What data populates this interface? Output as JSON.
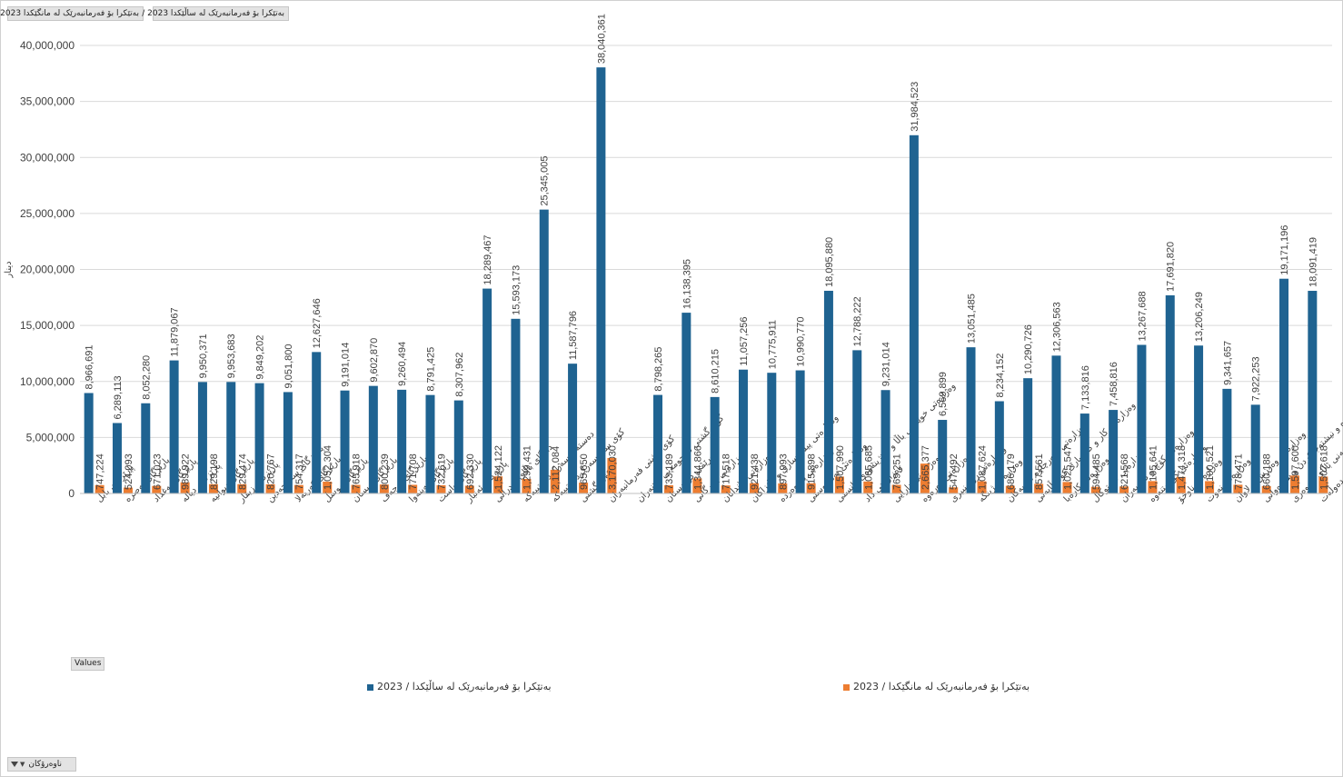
{
  "filter_buttons": [
    "بەتێکرا بۆ فەرمانبەرێک لە مانگێکدا 2023 /",
    "بەتێکرا بۆ فەرمانبەرێک لە ساڵێکدا 2023 /"
  ],
  "values_button": "Values",
  "axis_filter_button": "ناوەرۆکان",
  "colors": {
    "series1": "#1f6391",
    "series2": "#ed7d31",
    "grid": "#d9d9d9",
    "text": "#404040"
  },
  "icons": [
    "filter-icon",
    "chevron-down-icon"
  ],
  "chart_data": {
    "type": "bar",
    "ylabel": "دینار",
    "ylim": [
      0,
      40000000
    ],
    "yticks": [
      0,
      5000000,
      10000000,
      15000000,
      20000000,
      25000000,
      30000000,
      35000000,
      40000000
    ],
    "ytick_labels": [
      "0",
      "5,000,000",
      "10,000,000",
      "15,000,000",
      "20,000,000",
      "25,000,000",
      "30,000,000",
      "35,000,000",
      "40,000,000"
    ],
    "grid": true,
    "legend_position": "bottom",
    "categories": [
      "پارێزگای بابل",
      "پارێزگای بەصرە",
      "پارێزگای بەغداد",
      "پارێزگای دیالە",
      "پارێزگای دیوانیە",
      "پارێزگای زیقار",
      "پارێزگای سەلاحەدین",
      "پارێزگای کەربەلا",
      "پارێزگای موسڵ",
      "پارێزگای میسان",
      "پارێزگای نەجەف",
      "پارێزگای نەینەوا",
      "پارێزگای واست",
      "پارێزگای ئەنبار",
      "دادگای باڵای فیدراڵی",
      "دەستەی سەرکردایەتییەکە",
      "کۆی سی سەرکردایەتییەکە",
      "کۆی گشتی",
      "کۆی گشتی فەرمانبەران",
      "کۆی گشتی ئەنجومەنی نوێنەران",
      "هەرێمی کوردستان",
      "وەزارەتی بازرگانی",
      "وەزارەتی پلاندانان",
      "وەزارەتی پیشەسازی و کانزاکان",
      "وەزارەتی پەروەردە",
      "وەزارەتی تەندروستی",
      "وەزارەتی خوێندنی باڵا و توێژینەوەی زانستی",
      "وەزارەتی داد",
      "وەزارەتی دارایی",
      "وەزارەتی دەرەوە",
      "وەزارەتی رۆشنبیری",
      "وەزارەتی ژینگە",
      "وەزارەتی سەرچاوە ئاوییەکان",
      "وەزارەتی کار و کاروباری کۆمەڵایەتی",
      "وەزارەتی کارەبا",
      "وەزارەتی کشتوکاڵ",
      "وەزارەتی کۆچ و کۆچبەران",
      "وەزارەتی گواستنەوە",
      "وەزارەتی ناوخۆ",
      "وەزارەتی نەوت",
      "وەزارەتی وەرزش و لاوان",
      "وەزارەتی ئاوەدانکردنەوە و نیشتەجێکردن و شارەوانی",
      "ئەنجومەنی باڵای دادوەری",
      "ئەنجومەنی دەوڵەت"
    ],
    "series": [
      {
        "name": "بەتێکرا بۆ فەرمانبەرێک لە ساڵێکدا / 2023",
        "color": "#1f6391",
        "values": [
          8966691,
          6289113,
          8052280,
          11879067,
          9950371,
          9953683,
          9849202,
          9051800,
          12627646,
          9191014,
          9602870,
          9260494,
          8791425,
          8307962,
          18289467,
          15593173,
          25345005,
          11587796,
          38040361,
          null,
          8798265,
          16138395,
          8610215,
          11057256,
          10775911,
          10990770,
          18095880,
          12788222,
          9231014,
          31984523,
          6569899,
          13051485,
          8234152,
          10290726,
          12306563,
          7133816,
          7458816,
          13267688,
          17691820,
          13206249,
          9341657,
          7922253,
          19171196,
          18091419
        ],
        "labels": [
          "8,966,691",
          "6,289,113",
          "8,052,280",
          "11,879,067",
          "9,950,371",
          "9,953,683",
          "9,849,202",
          "9,051,800",
          "12,627,646",
          "9,191,014",
          "9,602,870",
          "9,260,494",
          "8,791,425",
          "8,307,962",
          "18,289,467",
          "15,593,173",
          "25,345,005",
          "11,587,796",
          "38,040,361",
          "",
          "8,798,265",
          "16,138,395",
          "8,610,215",
          "11,057,256",
          "10,775,911",
          "10,990,770",
          "18,095,880",
          "12,788,222",
          "9,231,014",
          "31,984,523",
          "6,569,899",
          "13,051,485",
          "8,234,152",
          "10,290,726",
          "12,306,563",
          "7,133,816",
          "7,458,816",
          "13,267,688",
          "17,691,820",
          "13,206,249",
          "9,341,657",
          "7,922,253",
          "19,171,196",
          "18,091,419"
        ]
      },
      {
        "name": "بەتێکرا بۆ فەرمانبەرێک لە مانگێکدا / 2023",
        "color": "#ed7d31",
        "values": [
          747224,
          524093,
          671023,
          989922,
          829198,
          829474,
          820767,
          754317,
          1052304,
          765918,
          800239,
          771708,
          732619,
          692330,
          1524122,
          1299431,
          2112084,
          965650,
          3170030,
          null,
          733189,
          1344866,
          717518,
          921438,
          897993,
          915898,
          1507990,
          1065685,
          769251,
          2665377,
          547492,
          1087624,
          686179,
          857561,
          1025547,
          594485,
          621568,
          1105641,
          1474318,
          1100521,
          778471,
          660188,
          1597600,
          1507618
        ],
        "labels": [
          "747,224",
          "524,093",
          "671,023",
          "989,922",
          "829,198",
          "829,474",
          "820,767",
          "754,317",
          "1,052,304",
          "765,918",
          "800,239",
          "771,708",
          "732,619",
          "692,330",
          "1,524,122",
          "1,299,431",
          "2,112,084",
          "965,650",
          "3,170,030",
          "",
          "733,189",
          "1,344,866",
          "717,518",
          "921,438",
          "897,993",
          "915,898",
          "1,507,990",
          "1,065,685",
          "769,251",
          "2,665,377",
          "547,492",
          "1,087,624",
          "686,179",
          "857,561",
          "1,025,547",
          "594,485",
          "621,568",
          "1,105,641",
          "1,474,318",
          "1,100,521",
          "778,471",
          "660,188",
          "1,597,600",
          "1,507,618"
        ]
      }
    ]
  }
}
